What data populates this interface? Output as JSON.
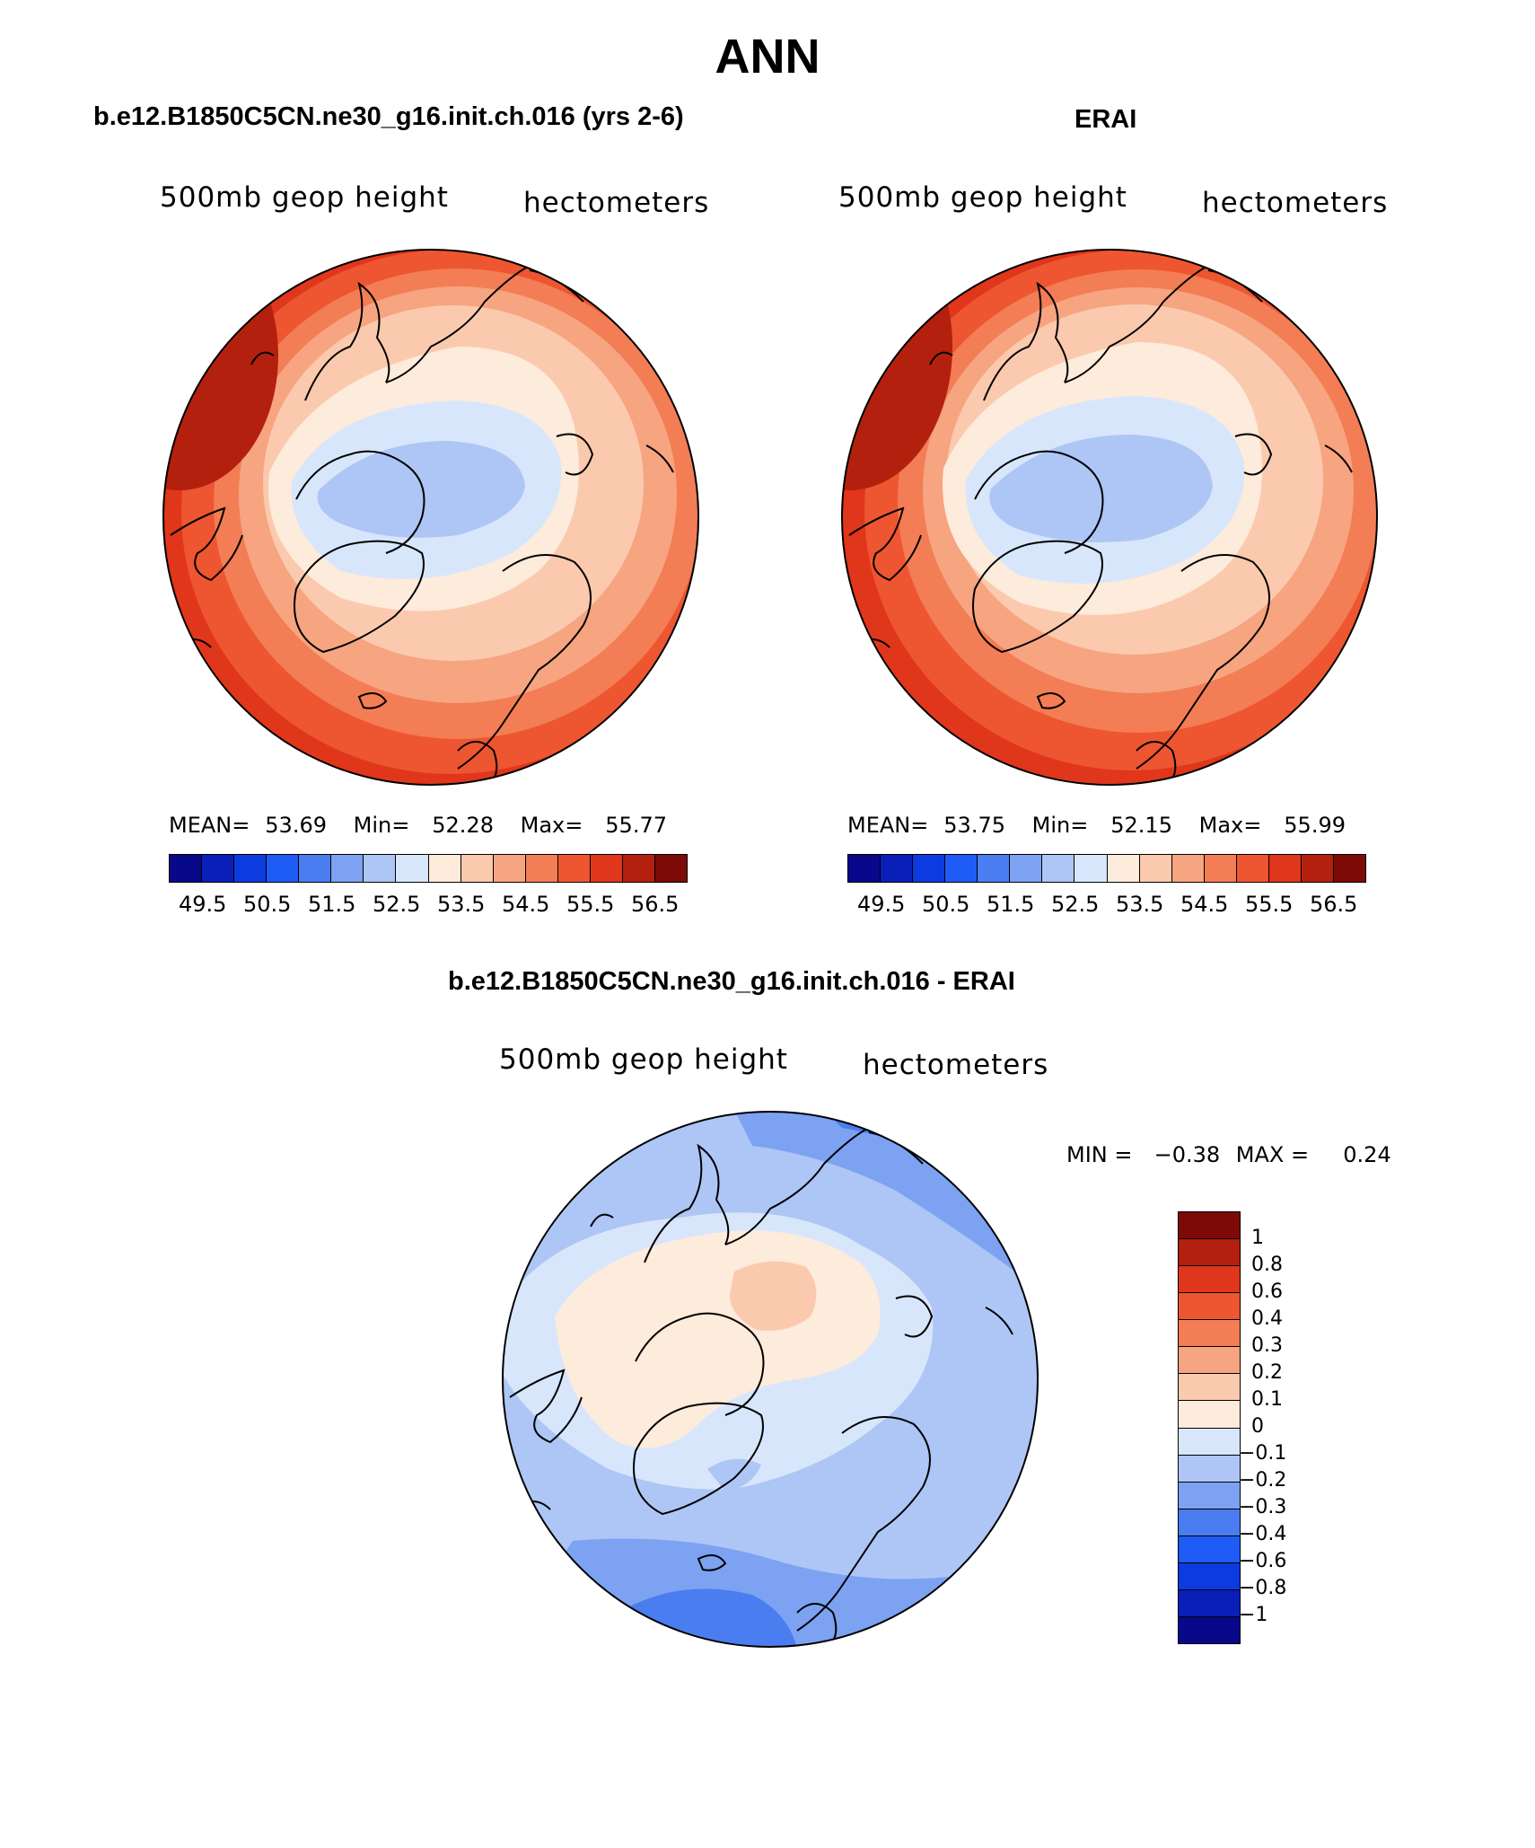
{
  "figure": {
    "title": "ANN",
    "panels": [
      {
        "title": "b.e12.B1850C5CN.ne30_g16.init.ch.016 (yrs 2-6)",
        "left_label": "500mb geop height",
        "right_label": "hectometers",
        "stats": {
          "mean_label": "MEAN=",
          "mean": "53.69",
          "min_label": "Min=",
          "min": "52.28",
          "max_label": "Max=",
          "max": "55.77"
        }
      },
      {
        "title": "ERAI",
        "left_label": "500mb geop height",
        "right_label": "hectometers",
        "stats": {
          "mean_label": "MEAN=",
          "mean": "53.75",
          "min_label": "Min=",
          "min": "52.15",
          "max_label": "Max=",
          "max": "55.99"
        }
      },
      {
        "title": "b.e12.B1850C5CN.ne30_g16.init.ch.016 - ERAI",
        "left_label": "500mb geop height",
        "right_label": "hectometers",
        "stats": {
          "min_label": "MIN =",
          "min": "−0.38",
          "max_label": "MAX =",
          "max": "0.24"
        }
      }
    ],
    "colorbar_top": {
      "ticks": [
        "49.5",
        "50.5",
        "51.5",
        "52.5",
        "53.5",
        "54.5",
        "55.5",
        "56.5"
      ],
      "colors": [
        "#08088a",
        "#0a1fb8",
        "#0c3be0",
        "#1f5cf5",
        "#4a7df0",
        "#7da2f2",
        "#aec6f5",
        "#d8e6fb",
        "#fdebdb",
        "#fbcaae",
        "#f7a481",
        "#f37d55",
        "#ed5630",
        "#e0361b",
        "#b4200e",
        "#7d0a06"
      ]
    },
    "colorbar_diff": {
      "labels": [
        "1",
        "0.8",
        "0.6",
        "0.4",
        "0.3",
        "0.2",
        "0.1",
        "0",
        "−0.1",
        "−0.2",
        "−0.3",
        "−0.4",
        "−0.6",
        "−0.8",
        "−1"
      ],
      "colors": [
        "#7d0a06",
        "#b4200e",
        "#e0361b",
        "#ed5630",
        "#f37d55",
        "#f7a481",
        "#fbcaae",
        "#fdebdb",
        "#d8e6fb",
        "#aec6f5",
        "#7da2f2",
        "#4a7df0",
        "#1f5cf5",
        "#0c3be0",
        "#0a1fb8",
        "#08088a"
      ]
    }
  },
  "chart_data": [
    {
      "type": "heatmap",
      "title": "b.e12.B1850C5CN.ne30_g16.init.ch.016 (yrs 2-6)",
      "variable": "500mb geop height",
      "units": "hectometers",
      "projection": "north-polar-stereographic",
      "mean": 53.69,
      "min": 52.28,
      "max": 55.77,
      "levels": [
        49.5,
        50.0,
        50.5,
        51.0,
        51.5,
        52.0,
        52.5,
        53.0,
        53.5,
        54.0,
        54.5,
        55.0,
        55.5,
        56.0,
        56.5
      ]
    },
    {
      "type": "heatmap",
      "title": "ERAI",
      "variable": "500mb geop height",
      "units": "hectometers",
      "projection": "north-polar-stereographic",
      "mean": 53.75,
      "min": 52.15,
      "max": 55.99,
      "levels": [
        49.5,
        50.0,
        50.5,
        51.0,
        51.5,
        52.0,
        52.5,
        53.0,
        53.5,
        54.0,
        54.5,
        55.0,
        55.5,
        56.0,
        56.5
      ]
    },
    {
      "type": "heatmap",
      "title": "b.e12.B1850C5CN.ne30_g16.init.ch.016 - ERAI",
      "variable": "500mb geop height",
      "units": "hectometers",
      "projection": "north-polar-stereographic",
      "min": -0.38,
      "max": 0.24,
      "levels": [
        -1,
        -0.8,
        -0.6,
        -0.4,
        -0.3,
        -0.2,
        -0.1,
        0,
        0.1,
        0.2,
        0.3,
        0.4,
        0.6,
        0.8,
        1
      ]
    }
  ]
}
